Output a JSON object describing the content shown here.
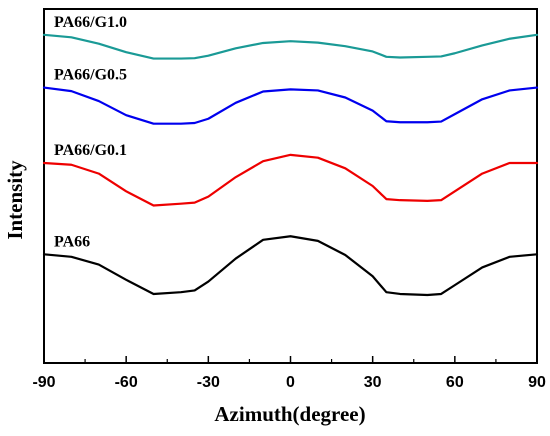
{
  "chart_data": {
    "type": "line",
    "xlabel": "Azimuth(degree)",
    "ylabel": "Intensity",
    "xlim": [
      -90,
      90
    ],
    "ylim": [
      0,
      100
    ],
    "xticks": [
      -90,
      -60,
      -30,
      0,
      30,
      60,
      90
    ],
    "y_tick_labels_shown": false,
    "grid": false,
    "legend": "none",
    "series": [
      {
        "name": "PA66/G1.0",
        "color": "#1a9a96",
        "x": [
          -90,
          -80,
          -70,
          -60,
          -50,
          -40,
          -35,
          -30,
          -20,
          -10,
          0,
          10,
          20,
          30,
          35,
          40,
          50,
          55,
          60,
          70,
          80,
          90
        ],
        "y": [
          92.7,
          92.0,
          90.2,
          87.8,
          86.0,
          86.0,
          86.1,
          86.8,
          88.9,
          90.4,
          90.9,
          90.5,
          89.5,
          88.0,
          86.5,
          86.3,
          86.5,
          86.6,
          87.5,
          89.7,
          91.6,
          92.7
        ]
      },
      {
        "name": "PA66/G0.5",
        "color": "#0000ee",
        "x": [
          -90,
          -80,
          -70,
          -60,
          -50,
          -40,
          -35,
          -30,
          -20,
          -10,
          0,
          10,
          20,
          30,
          35,
          40,
          50,
          55,
          60,
          70,
          80,
          90
        ],
        "y": [
          77.8,
          76.8,
          74.0,
          70.0,
          67.6,
          67.6,
          67.8,
          69.0,
          73.5,
          76.7,
          77.3,
          77.0,
          75.0,
          71.3,
          68.3,
          68.0,
          68.0,
          68.2,
          70.3,
          74.5,
          77.0,
          77.8
        ]
      },
      {
        "name": "PA66/G0.1",
        "color": "#ee0000",
        "x": [
          -90,
          -80,
          -70,
          -60,
          -50,
          -40,
          -35,
          -30,
          -20,
          -10,
          0,
          10,
          20,
          30,
          35,
          40,
          50,
          55,
          60,
          70,
          80,
          90
        ],
        "y": [
          56.5,
          56.0,
          53.5,
          48.5,
          44.5,
          45.0,
          45.3,
          47.0,
          52.5,
          57.0,
          58.8,
          58.0,
          55.0,
          50.0,
          46.3,
          46.0,
          45.8,
          46.0,
          48.5,
          53.5,
          56.5,
          56.5
        ]
      },
      {
        "name": "PA66",
        "color": "#000000",
        "x": [
          -90,
          -80,
          -70,
          -60,
          -50,
          -40,
          -35,
          -30,
          -20,
          -10,
          0,
          10,
          20,
          30,
          35,
          40,
          50,
          55,
          60,
          70,
          80,
          90
        ],
        "y": [
          30.7,
          30.0,
          27.8,
          23.5,
          19.5,
          20.0,
          20.5,
          23.0,
          29.5,
          34.8,
          35.8,
          34.5,
          30.5,
          24.5,
          20.0,
          19.5,
          19.2,
          19.5,
          22.0,
          27.0,
          30.0,
          30.7
        ]
      }
    ]
  }
}
